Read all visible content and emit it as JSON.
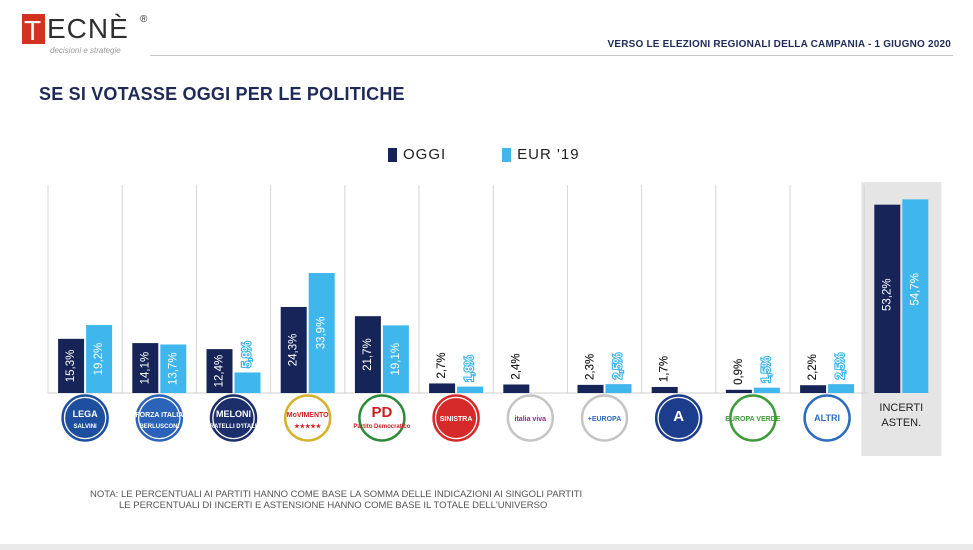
{
  "brand": {
    "logo_letter": "T",
    "logo_text": "ECNÈ",
    "registered": "®",
    "tagline": "decisioni e strategie"
  },
  "header": {
    "title": "VERSO LE ELEZIONI REGIONALI DELLA CAMPANIA - 1 GIUGNO 2020"
  },
  "page_title": "SE SI VOTASSE OGGI PER LE POLITICHE",
  "colors": {
    "oggi": "#172457",
    "eur19": "#3fb6ec",
    "highlight_bg": "#e5e5e5",
    "divider": "#d6d6d6"
  },
  "chart_data": {
    "type": "bar",
    "series": [
      {
        "name": "OGGI",
        "values": [
          15.3,
          14.1,
          12.4,
          24.3,
          21.7,
          2.7,
          2.4,
          2.3,
          1.7,
          0.9,
          2.2,
          53.2
        ]
      },
      {
        "name": "EUR '19",
        "values": [
          19.2,
          13.7,
          5.8,
          33.9,
          19.1,
          1.8,
          null,
          2.5,
          null,
          1.5,
          2.5,
          54.7
        ]
      }
    ],
    "value_labels": {
      "oggi": [
        "15,3%",
        "14,1%",
        "12,4%",
        "24,3%",
        "21,7%",
        "2,7%",
        "2,4%",
        "2,3%",
        "1,7%",
        "0,9%",
        "2,2%",
        "53,2%"
      ],
      "eur19": [
        "19,2%",
        "13,7%",
        "5,8%",
        "33,9%",
        "19,1%",
        "1,8%",
        "",
        "2,5%",
        "",
        "1,5%",
        "2,5%",
        "54,7%"
      ]
    },
    "categories": [
      {
        "label": "LEGA SALVINI PREMIER",
        "icon": "lega-logo",
        "logo_text": "LEGA",
        "sub": "SALVINI",
        "ring": "#1d4f9e",
        "fill": "#1d4f9e",
        "text_color": "#ffffff"
      },
      {
        "label": "FORZA ITALIA BERLUSCONI PRESIDENTE",
        "icon": "forza-italia-logo",
        "logo_text": "FORZA ITALIA",
        "sub": "BERLUSCONI",
        "ring": "#2a63b8",
        "fill": "#2a63b8",
        "text_color": "#ffffff"
      },
      {
        "label": "FRATELLI D'ITALIA GIORGIA MELONI",
        "icon": "fratelli-ditalia-logo",
        "logo_text": "MELONI",
        "sub": "FRATELLI D'ITALIA",
        "ring": "#1c2f6b",
        "fill": "#1c2f6b",
        "text_color": "#ffffff"
      },
      {
        "label": "MOVIMENTO 5 STELLE",
        "icon": "movimento-5-stelle-logo",
        "logo_text": "MoVIMENTO",
        "sub": "★★★★★",
        "ring": "#d6b12a",
        "fill": "#ffffff",
        "text_color": "#cc1f1f"
      },
      {
        "label": "PARTITO DEMOCRATICO",
        "icon": "partito-democratico-logo",
        "logo_text": "PD",
        "sub": "Partito Democratico",
        "ring": "#2e8b3a",
        "fill": "#ffffff",
        "text_color": "#cc1f1f"
      },
      {
        "label": "LA SINISTRA",
        "icon": "la-sinistra-logo",
        "logo_text": "SINISTRA",
        "sub": "",
        "ring": "#d62a2a",
        "fill": "#d62a2a",
        "text_color": "#ffffff"
      },
      {
        "label": "ITALIA VIVA",
        "icon": "italia-viva-logo",
        "logo_text": "italia viva",
        "sub": "",
        "ring": "#c5c5c5",
        "fill": "#ffffff",
        "text_color": "#8a2b80"
      },
      {
        "label": "+EUROPA",
        "icon": "piu-europa-logo",
        "logo_text": "+EUROPA",
        "sub": "",
        "ring": "#c5c5c5",
        "fill": "#ffffff",
        "text_color": "#2d6dbf"
      },
      {
        "label": "AZIONE",
        "icon": "azione-logo",
        "logo_text": "A",
        "sub": "",
        "ring": "#1c3c8c",
        "fill": "#1c3c8c",
        "text_color": "#ffffff"
      },
      {
        "label": "EUROPA VERDE",
        "icon": "europa-verde-logo",
        "logo_text": "EUROPA VERDE",
        "sub": "",
        "ring": "#3e9b3a",
        "fill": "#ffffff",
        "text_color": "#3e9b3a"
      },
      {
        "label": "ALTRI",
        "icon": "altri-logo",
        "logo_text": "ALTRI",
        "sub": "",
        "ring": "#2d6dbf",
        "fill": "#ffffff",
        "text_color": "#2d6dbf"
      },
      {
        "label": "INCERTI ASTEN.",
        "icon": "",
        "logo_text": "INCERTI",
        "sub": "ASTEN.",
        "ring": "",
        "fill": "",
        "text_color": "#1f1f1f"
      }
    ],
    "ylim": [
      0,
      60
    ],
    "grid": false,
    "legend_position": "top-center"
  },
  "note": {
    "line1": "NOTA: LE PERCENTUALI AI PARTITI HANNO COME BASE LA SOMMA DELLE INDICAZIONI AI SINGOLI PARTITI",
    "line2": "LE PERCENTUALI DI INCERTI E ASTENSIONE HANNO COME BASE IL TOTALE DELL'UNIVERSO"
  }
}
